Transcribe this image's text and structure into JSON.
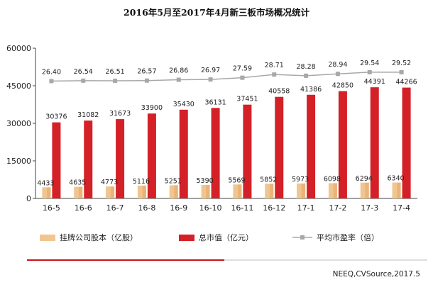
{
  "chart_data": {
    "type": "bar",
    "title": "2016年5月至2017年4月新三板市场概况统计",
    "categories": [
      "16-5",
      "16-6",
      "16-7",
      "16-8",
      "16-9",
      "16-10",
      "16-11",
      "16-12",
      "17-1",
      "17-2",
      "17-3",
      "17-4"
    ],
    "yticks": [
      "60000",
      "45000",
      "30000",
      "15000",
      "0"
    ],
    "ylim": [
      0,
      60000
    ],
    "series": [
      {
        "name": "挂牌公司股本（亿股）",
        "kind": "bar",
        "color": "#f2c58f",
        "values": [
          4433,
          4635,
          4773,
          5116,
          5251,
          5390,
          5569,
          5852,
          5973,
          6098,
          6294,
          6340
        ]
      },
      {
        "name": "总市值（亿元）",
        "kind": "bar",
        "color": "#d42027",
        "values": [
          30376,
          31082,
          31673,
          33900,
          35430,
          36131,
          37451,
          40558,
          41386,
          42850,
          44391,
          44266
        ]
      },
      {
        "name": "平均市盈率（倍）",
        "kind": "line",
        "color": "#a8a8a8",
        "values": [
          26.4,
          26.54,
          26.51,
          26.57,
          26.86,
          26.97,
          27.59,
          28.71,
          28.28,
          28.94,
          29.54,
          29.52
        ]
      }
    ],
    "value_labels": {
      "pe": [
        "26.40",
        "26.54",
        "26.51",
        "26.57",
        "26.86",
        "26.97",
        "27.59",
        "28.71",
        "28.28",
        "28.94",
        "29.54",
        "29.52"
      ]
    },
    "legend_position": "bottom",
    "grid": false
  },
  "source_text": "NEEQ,CVSource,2017.5"
}
